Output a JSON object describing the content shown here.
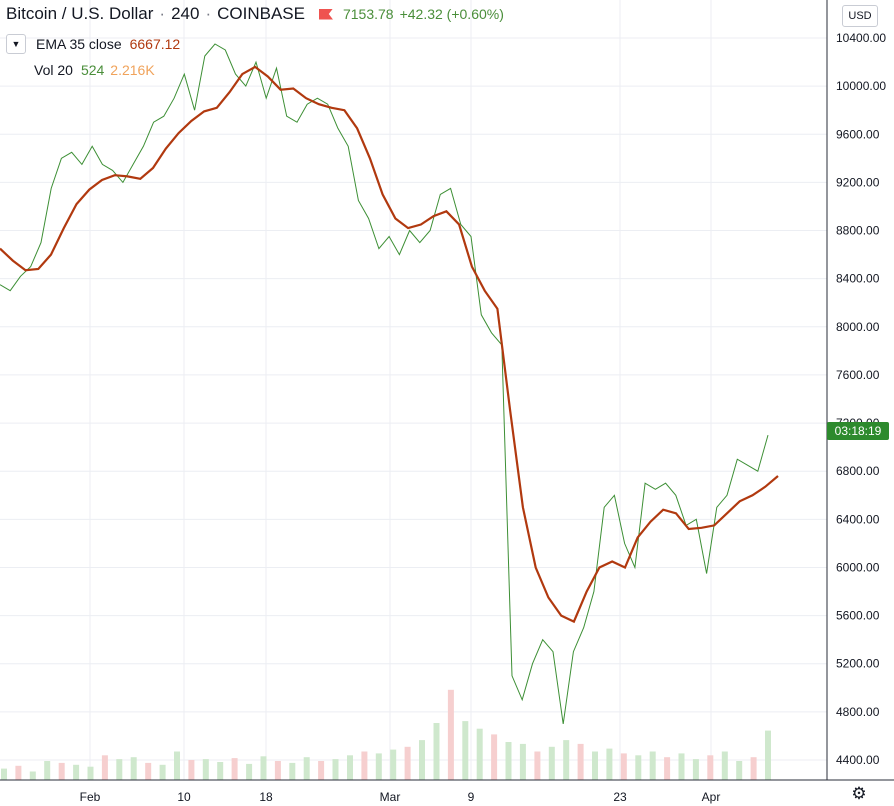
{
  "header": {
    "symbol": "Bitcoin / U.S. Dollar",
    "interval": "240",
    "exchange": "COINBASE",
    "last_price": "7153.78",
    "change": "+42.32 (+0.60%)"
  },
  "indicators": {
    "ema_label": "EMA 35 close",
    "ema_value": "6667.12",
    "vol_label": "Vol 20",
    "vol_value": "524",
    "vol_avg": "2.216K"
  },
  "currency_button": "USD",
  "countdown": "03:18:19",
  "colors": {
    "price": "#3d8f35",
    "ema": "#b1390f",
    "vol_up": "#cfe8cd",
    "vol_down": "#f6cfcf",
    "tag": "#2d8a2d"
  },
  "chart_data": {
    "type": "line",
    "y_tick_labels": [
      "4400.00",
      "4800.00",
      "5200.00",
      "5600.00",
      "6000.00",
      "6400.00",
      "6800.00",
      "7200.00",
      "7600.00",
      "8000.00",
      "8400.00",
      "8800.00",
      "9200.00",
      "9600.00",
      "10000.00",
      "10400.00"
    ],
    "x_tick_labels": [
      "Feb",
      "10",
      "18",
      "Mar",
      "9",
      "23",
      "Apr"
    ],
    "ylim": [
      4200,
      10600
    ],
    "series": [
      {
        "name": "Bitcoin / U.S. Dollar",
        "values": [
          8350,
          8300,
          8420,
          8500,
          8700,
          9150,
          9400,
          9450,
          9350,
          9500,
          9350,
          9300,
          9200,
          9350,
          9500,
          9700,
          9750,
          9900,
          10100,
          9800,
          10250,
          10350,
          10300,
          10100,
          10000,
          10200,
          9900,
          10150,
          9750,
          9700,
          9850,
          9900,
          9850,
          9650,
          9500,
          9050,
          8900,
          8650,
          8750,
          8600,
          8800,
          8700,
          8800,
          9100,
          9150,
          8850,
          8750,
          8100,
          7950,
          7850,
          5100,
          4900,
          5200,
          5400,
          5300,
          4700,
          5300,
          5500,
          5800,
          6500,
          6600,
          6200,
          6000,
          6700,
          6650,
          6700,
          6600,
          6350,
          6400,
          5950,
          6500,
          6600,
          6900,
          6850,
          6800,
          7100
        ]
      },
      {
        "name": "EMA 35 close",
        "values": [
          8650,
          8550,
          8470,
          8480,
          8600,
          8820,
          9020,
          9140,
          9220,
          9260,
          9250,
          9230,
          9320,
          9480,
          9610,
          9710,
          9790,
          9820,
          9950,
          10100,
          10160,
          10080,
          9970,
          9980,
          9900,
          9850,
          9820,
          9800,
          9650,
          9400,
          9100,
          8900,
          8820,
          8850,
          8920,
          8960,
          8850,
          8500,
          8300,
          8150,
          7300,
          6500,
          6000,
          5750,
          5600,
          5550,
          5800,
          6000,
          6050,
          6000,
          6250,
          6380,
          6480,
          6450,
          6320,
          6330,
          6350,
          6450,
          6550,
          6600,
          6670,
          6760
        ]
      }
    ],
    "volume_values": [
      120,
      150,
      90,
      200,
      180,
      160,
      140,
      260,
      220,
      240,
      180,
      160,
      300,
      210,
      220,
      190,
      230,
      170,
      250,
      200,
      180,
      240,
      200,
      220,
      260,
      300,
      280,
      320,
      350,
      420,
      600,
      950,
      620,
      540,
      480,
      400,
      380,
      300,
      350,
      420,
      380,
      300,
      330,
      280,
      260,
      300,
      240,
      280,
      220,
      260,
      300,
      200,
      240,
      520
    ],
    "grid": "on",
    "legend": "top-left"
  }
}
